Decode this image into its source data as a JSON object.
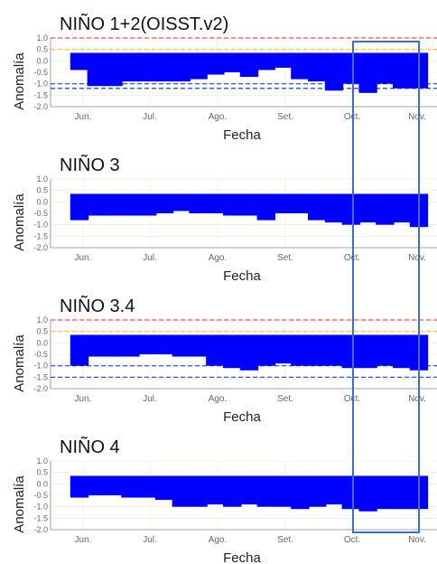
{
  "colors": {
    "bar": "#0000ff",
    "red_ref": "#ff4d4d",
    "orange_ref": "#ffb347",
    "blue_ref": "#1f3fd6",
    "grid": "#f2e7c9",
    "highlight": "#3a6fcf"
  },
  "chart_data": [
    {
      "type": "bar",
      "title": "NIÑO 1+2(OISST.v2)",
      "xlabel": "Fecha",
      "ylabel": "Anomalía",
      "ylim": [
        -2.0,
        1.0
      ],
      "yticks": [
        "1.0",
        "0.5",
        "0.0",
        "-0.5",
        "-1.0",
        "-1.5",
        "-2.0"
      ],
      "xticks": [
        "Jun.",
        "Jul.",
        "Ago.",
        "Set.",
        "Oct.",
        "Nov."
      ],
      "ref_lines": [
        1.0,
        0.5,
        -1.0,
        -1.2
      ],
      "values": [
        -0.4,
        -1.1,
        -1.1,
        -0.9,
        -0.9,
        -0.9,
        -0.9,
        -0.8,
        -0.6,
        -0.5,
        -0.7,
        -0.4,
        -0.3,
        -0.8,
        -0.9,
        -1.3,
        -1.0,
        -1.4,
        -1.0,
        -1.2,
        -1.2
      ]
    },
    {
      "type": "bar",
      "title": "NIÑO 3",
      "xlabel": "Fecha",
      "ylabel": "Anomalía",
      "ylim": [
        -2.0,
        1.0
      ],
      "yticks": [
        "1.0",
        "0.5",
        "0.0",
        "-0.5",
        "-1.0",
        "-1.5",
        "-2.0"
      ],
      "xticks": [
        "Jun.",
        "Jul.",
        "Ago.",
        "Set.",
        "Oct.",
        "Nov."
      ],
      "ref_lines": [],
      "values": [
        -0.8,
        -0.6,
        -0.6,
        -0.6,
        -0.6,
        -0.5,
        -0.4,
        -0.5,
        -0.5,
        -0.6,
        -0.6,
        -0.8,
        -0.5,
        -0.5,
        -0.8,
        -0.9,
        -1.0,
        -0.9,
        -1.0,
        -0.9,
        -1.1
      ]
    },
    {
      "type": "bar",
      "title": "NIÑO 3.4",
      "xlabel": "Fecha",
      "ylabel": "Anomalía",
      "ylim": [
        -2.0,
        1.0
      ],
      "yticks": [
        "1.0",
        "0.5",
        "0.0",
        "-0.5",
        "-1.0",
        "-1.5",
        "-2.0"
      ],
      "xticks": [
        "Jun.",
        "Jul.",
        "Ago.",
        "Set.",
        "Oct.",
        "Nov."
      ],
      "ref_lines": [
        1.0,
        0.5,
        -1.0,
        -1.5
      ],
      "values": [
        -1.0,
        -0.6,
        -0.6,
        -0.6,
        -0.5,
        -0.5,
        -0.6,
        -0.6,
        -1.0,
        -1.1,
        -1.2,
        -1.0,
        -0.9,
        -1.0,
        -1.0,
        -1.0,
        -1.1,
        -1.1,
        -1.0,
        -1.1,
        -1.2
      ]
    },
    {
      "type": "bar",
      "title": "NIÑO 4",
      "xlabel": "Fecha",
      "ylabel": "Anomalía",
      "ylim": [
        -2.0,
        1.0
      ],
      "yticks": [
        "1.0",
        "0.5",
        "0.0",
        "-0.5",
        "-1.0",
        "-1.5",
        "-2.0"
      ],
      "xticks": [
        "Jun.",
        "Jul.",
        "Ago.",
        "Set.",
        "Oct.",
        "Nov."
      ],
      "ref_lines": [],
      "values": [
        -0.6,
        -0.5,
        -0.5,
        -0.6,
        -0.6,
        -0.7,
        -1.0,
        -1.0,
        -0.9,
        -1.0,
        -0.9,
        -1.0,
        -1.0,
        -1.1,
        -1.0,
        -0.9,
        -1.1,
        -1.2,
        -1.1,
        -1.1,
        -1.1
      ]
    }
  ]
}
